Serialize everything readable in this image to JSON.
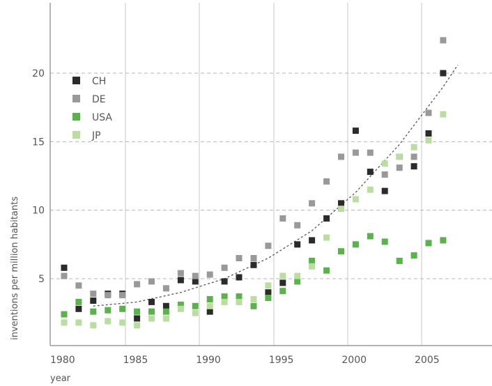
{
  "chart_data": {
    "type": "scatter",
    "title": "",
    "xlabel": "year",
    "ylabel": "inventions per million habitants",
    "xlim": [
      1979,
      2009
    ],
    "ylim": [
      0,
      24
    ],
    "x_ticks": [
      1980,
      1985,
      1990,
      1995,
      2000,
      2005
    ],
    "y_ticks": [
      5,
      10,
      15,
      20
    ],
    "grid": {
      "vertical": true,
      "horizontal": true,
      "horizontal_style": "dashed"
    },
    "legend": {
      "position": "top-left"
    },
    "series": [
      {
        "name": "CH",
        "color": "#2b2b2b",
        "x": [
          1980,
          1981,
          1982,
          1983,
          1984,
          1985,
          1986,
          1987,
          1988,
          1989,
          1990,
          1991,
          1992,
          1993,
          1994,
          1995,
          1996,
          1997,
          1998,
          1999,
          2000,
          2001,
          2002,
          2003,
          2004,
          2005,
          2006
        ],
        "y": [
          5.8,
          2.8,
          3.4,
          3.9,
          3.9,
          2.1,
          3.3,
          3.0,
          4.9,
          4.8,
          2.6,
          4.8,
          5.1,
          6.0,
          4.0,
          4.7,
          7.5,
          7.8,
          9.4,
          10.5,
          15.8,
          12.8,
          11.4,
          13.9,
          13.2,
          15.6,
          20.0
        ]
      },
      {
        "name": "DE",
        "color": "#999999",
        "x": [
          1980,
          1981,
          1982,
          1983,
          1984,
          1985,
          1986,
          1987,
          1988,
          1989,
          1990,
          1991,
          1992,
          1993,
          1994,
          1995,
          1996,
          1997,
          1998,
          1999,
          2000,
          2001,
          2002,
          2003,
          2004,
          2005,
          2006
        ],
        "y": [
          5.2,
          4.5,
          3.9,
          3.8,
          3.8,
          4.6,
          4.8,
          4.3,
          5.4,
          5.2,
          5.3,
          5.8,
          6.5,
          6.5,
          7.4,
          9.4,
          8.9,
          10.5,
          12.1,
          13.9,
          14.2,
          14.2,
          12.6,
          13.1,
          13.9,
          17.1,
          22.4
        ]
      },
      {
        "name": "USA",
        "color": "#58b348",
        "x": [
          1980,
          1981,
          1982,
          1983,
          1984,
          1985,
          1986,
          1987,
          1988,
          1989,
          1990,
          1991,
          1992,
          1993,
          1994,
          1995,
          1996,
          1997,
          1998,
          1999,
          2000,
          2001,
          2002,
          2003,
          2004,
          2005,
          2006
        ],
        "y": [
          2.4,
          3.3,
          2.6,
          2.7,
          2.8,
          2.6,
          2.6,
          2.6,
          3.1,
          3.0,
          3.5,
          3.7,
          3.7,
          3.0,
          3.6,
          4.1,
          4.8,
          6.3,
          5.6,
          7.0,
          7.5,
          8.1,
          7.7,
          6.3,
          6.7,
          7.6,
          7.8
        ]
      },
      {
        "name": "JP",
        "color": "#b9dea0",
        "x": [
          1980,
          1981,
          1982,
          1983,
          1984,
          1985,
          1986,
          1987,
          1988,
          1989,
          1990,
          1991,
          1992,
          1993,
          1994,
          1995,
          1996,
          1997,
          1998,
          1999,
          2000,
          2001,
          2002,
          2003,
          2004,
          2005,
          2006
        ],
        "y": [
          1.8,
          1.8,
          1.6,
          1.9,
          1.8,
          1.6,
          2.1,
          2.1,
          2.8,
          2.5,
          3.0,
          3.3,
          3.3,
          3.5,
          4.5,
          5.2,
          5.2,
          5.9,
          8.0,
          10.1,
          10.8,
          11.5,
          13.4,
          13.9,
          14.6,
          15.1,
          17.0
        ]
      }
    ],
    "trendline": {
      "style": "dotted",
      "x": [
        1982,
        1985,
        1988,
        1991,
        1994,
        1997,
        2000,
        2003,
        2006,
        2007
      ],
      "y": [
        3.0,
        3.3,
        4.0,
        5.0,
        6.5,
        8.5,
        11.3,
        14.8,
        19.0,
        20.6
      ]
    }
  }
}
